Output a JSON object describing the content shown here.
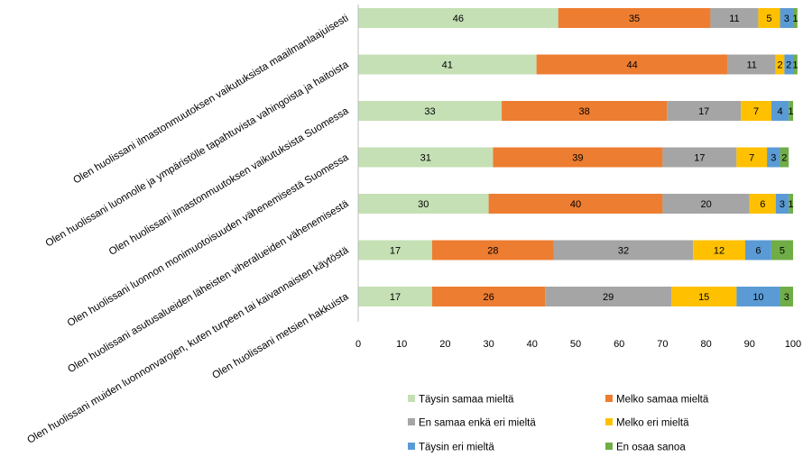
{
  "chart_data": {
    "type": "bar",
    "orientation": "horizontal",
    "stacked": true,
    "categories": [
      "Olen huolissani ilmastonmuutoksen vaikutuksista maailmanlaajuisesti",
      "Olen huolissani luonnolle ja ympäristölle tapahtuvista vahingoista ja haitoista",
      "Olen huolissani ilmastonmuutoksen vaikutuksista Suomessa",
      "Olen huolissani luonnon monimuotoisuuden vähenemisestä Suomessa",
      "Olen huolissani asutusalueiden läheisten viheralueiden vähenemisestä",
      "Olen huolissani muiden luonnonvarojen, kuten turpeen tai kaivannaisten käytöstä",
      "Olen huolissani metsien hakkuista"
    ],
    "series": [
      {
        "name": "Täysin samaa mieltä",
        "color": "#c5e0b4",
        "values": [
          46,
          41,
          33,
          31,
          30,
          17,
          17
        ]
      },
      {
        "name": "Melko samaa mieltä",
        "color": "#ed7d31",
        "values": [
          35,
          44,
          38,
          39,
          40,
          28,
          26
        ]
      },
      {
        "name": "En samaa enkä eri mieltä",
        "color": "#a5a5a5",
        "values": [
          11,
          11,
          17,
          17,
          20,
          32,
          29
        ]
      },
      {
        "name": "Melko eri mieltä",
        "color": "#ffc000",
        "values": [
          5,
          2,
          7,
          7,
          6,
          12,
          15
        ]
      },
      {
        "name": "Täysin eri mieltä",
        "color": "#5b9bd5",
        "values": [
          3,
          2,
          4,
          3,
          3,
          6,
          10
        ]
      },
      {
        "name": "En osaa sanoa",
        "color": "#70ad47",
        "values": [
          1,
          1,
          1,
          2,
          1,
          5,
          3
        ]
      }
    ],
    "xlim": [
      0,
      100
    ],
    "xticks": [
      "0",
      "10",
      "20",
      "30",
      "40",
      "50",
      "60",
      "70",
      "80",
      "90",
      "100"
    ],
    "grid": false,
    "legend_position": "bottom"
  }
}
